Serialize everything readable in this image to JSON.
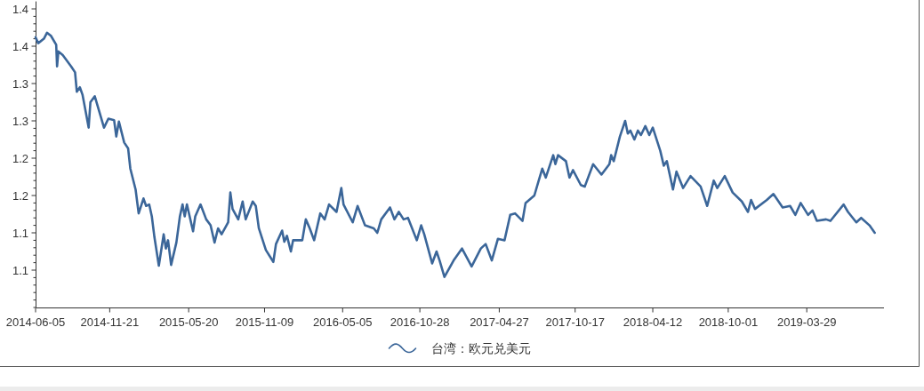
{
  "chart_data": {
    "type": "line",
    "x": [
      "2014-06-05",
      "2014-06-11",
      "2014-06-24",
      "2014-07-01",
      "2014-07-10",
      "2014-07-22",
      "2014-07-24",
      "2014-07-27",
      "2014-08-06",
      "2014-08-25",
      "2014-09-03",
      "2014-09-07",
      "2014-09-14",
      "2014-09-20",
      "2014-10-04",
      "2014-10-08",
      "2014-10-18",
      "2014-10-25",
      "2014-11-08",
      "2014-11-18",
      "2014-12-01",
      "2014-12-06",
      "2014-12-12",
      "2014-12-24",
      "2015-01-02",
      "2015-01-07",
      "2015-01-19",
      "2015-01-26",
      "2015-02-06",
      "2015-02-12",
      "2015-02-19",
      "2015-02-25",
      "2015-03-03",
      "2015-03-13",
      "2015-03-24",
      "2015-03-29",
      "2015-04-03",
      "2015-04-10",
      "2015-04-22",
      "2015-04-30",
      "2015-05-06",
      "2015-05-11",
      "2015-05-16",
      "2015-05-30",
      "2015-06-04",
      "2015-06-16",
      "2015-06-29",
      "2015-07-09",
      "2015-07-18",
      "2015-07-26",
      "2015-08-03",
      "2015-08-18",
      "2015-08-23",
      "2015-08-28",
      "2015-09-10",
      "2015-09-20",
      "2015-09-27",
      "2015-10-13",
      "2015-10-20",
      "2015-10-27",
      "2015-11-12",
      "2015-11-29",
      "2015-12-05",
      "2015-12-19",
      "2015-12-24",
      "2015-12-30",
      "2016-01-08",
      "2016-01-13",
      "2016-02-03",
      "2016-02-11",
      "2016-02-20",
      "2016-03-01",
      "2016-03-15",
      "2016-03-25",
      "2016-04-04",
      "2016-04-21",
      "2016-05-02",
      "2016-05-07",
      "2016-05-28",
      "2016-06-08",
      "2016-06-25",
      "2016-07-15",
      "2016-07-23",
      "2016-08-01",
      "2016-08-21",
      "2016-08-31",
      "2016-09-10",
      "2016-09-21",
      "2016-10-01",
      "2016-10-21",
      "2016-10-31",
      "2016-11-07",
      "2016-11-25",
      "2016-12-05",
      "2016-12-12",
      "2016-12-23",
      "2017-01-13",
      "2017-02-01",
      "2017-02-23",
      "2017-03-16",
      "2017-03-27",
      "2017-04-10",
      "2017-04-24",
      "2017-05-09",
      "2017-05-22",
      "2017-06-02",
      "2017-06-19",
      "2017-06-26",
      "2017-07-16",
      "2017-07-26",
      "2017-08-03",
      "2017-08-11",
      "2017-08-28",
      "2017-09-02",
      "2017-09-08",
      "2017-09-26",
      "2017-10-04",
      "2017-10-12",
      "2017-10-30",
      "2017-11-08",
      "2017-11-27",
      "2017-12-16",
      "2018-01-03",
      "2018-01-07",
      "2018-01-13",
      "2018-01-27",
      "2018-02-08",
      "2018-02-14",
      "2018-02-20",
      "2018-03-01",
      "2018-03-09",
      "2018-03-16",
      "2018-03-26",
      "2018-04-04",
      "2018-04-12",
      "2018-04-29",
      "2018-05-07",
      "2018-05-14",
      "2018-05-28",
      "2018-06-05",
      "2018-06-20",
      "2018-07-07",
      "2018-07-30",
      "2018-08-14",
      "2018-08-29",
      "2018-09-06",
      "2018-09-23",
      "2018-10-11",
      "2018-11-01",
      "2018-11-15",
      "2018-11-22",
      "2018-12-01",
      "2018-12-28",
      "2019-01-12",
      "2019-02-02",
      "2019-02-19",
      "2019-03-03",
      "2019-03-15",
      "2019-04-01",
      "2019-04-11",
      "2019-04-21",
      "2019-05-12",
      "2019-05-22",
      "2019-06-21",
      "2019-07-01",
      "2019-07-20",
      "2019-07-31",
      "2019-08-19",
      "2019-08-31"
    ],
    "series": [
      {
        "name": "台湾：欧元兑美元",
        "color": "#3b6699",
        "values": [
          1.362,
          1.354,
          1.36,
          1.368,
          1.364,
          1.352,
          1.323,
          1.343,
          1.338,
          1.323,
          1.315,
          1.289,
          1.295,
          1.285,
          1.241,
          1.275,
          1.283,
          1.269,
          1.241,
          1.253,
          1.251,
          1.229,
          1.249,
          1.221,
          1.213,
          1.186,
          1.158,
          1.126,
          1.146,
          1.136,
          1.138,
          1.122,
          1.094,
          1.056,
          1.098,
          1.079,
          1.09,
          1.057,
          1.087,
          1.122,
          1.138,
          1.122,
          1.138,
          1.102,
          1.122,
          1.138,
          1.118,
          1.11,
          1.087,
          1.106,
          1.098,
          1.114,
          1.154,
          1.132,
          1.118,
          1.142,
          1.118,
          1.142,
          1.136,
          1.106,
          1.077,
          1.061,
          1.085,
          1.103,
          1.088,
          1.096,
          1.075,
          1.09,
          1.09,
          1.118,
          1.106,
          1.09,
          1.126,
          1.118,
          1.138,
          1.128,
          1.16,
          1.138,
          1.114,
          1.136,
          1.11,
          1.106,
          1.1,
          1.118,
          1.134,
          1.118,
          1.128,
          1.118,
          1.12,
          1.09,
          1.11,
          1.098,
          1.059,
          1.075,
          1.063,
          1.041,
          1.063,
          1.079,
          1.055,
          1.079,
          1.085,
          1.063,
          1.092,
          1.09,
          1.124,
          1.126,
          1.116,
          1.14,
          1.15,
          1.17,
          1.186,
          1.174,
          1.204,
          1.192,
          1.204,
          1.196,
          1.174,
          1.184,
          1.164,
          1.162,
          1.192,
          1.178,
          1.192,
          1.204,
          1.196,
          1.229,
          1.25,
          1.233,
          1.237,
          1.225,
          1.237,
          1.231,
          1.243,
          1.231,
          1.241,
          1.21,
          1.19,
          1.196,
          1.158,
          1.182,
          1.16,
          1.176,
          1.162,
          1.136,
          1.17,
          1.16,
          1.176,
          1.154,
          1.142,
          1.128,
          1.144,
          1.132,
          1.144,
          1.152,
          1.134,
          1.136,
          1.124,
          1.14,
          1.124,
          1.13,
          1.116,
          1.118,
          1.116,
          1.138,
          1.128,
          1.114,
          1.12,
          1.11,
          1.1
        ]
      }
    ],
    "xlim": [
      "2014-06-05",
      "2019-09-21"
    ],
    "xticks": [
      "2014-06-05",
      "2014-11-21",
      "2015-05-20",
      "2015-11-09",
      "2016-05-05",
      "2016-10-28",
      "2017-04-27",
      "2017-10-17",
      "2018-04-12",
      "2018-10-01",
      "2019-03-29"
    ],
    "ylim": [
      1.0,
      1.41
    ],
    "yticks": [
      {
        "value": 1.0,
        "label": null
      },
      {
        "value": 1.01,
        "label": null
      },
      {
        "value": 1.02,
        "label": null
      },
      {
        "value": 1.03,
        "label": null
      },
      {
        "value": 1.04,
        "label": null
      },
      {
        "value": 1.05,
        "label": "1.1"
      },
      {
        "value": 1.06,
        "label": null
      },
      {
        "value": 1.07,
        "label": null
      },
      {
        "value": 1.08,
        "label": null
      },
      {
        "value": 1.09,
        "label": null
      },
      1.1,
      {
        "value": 1.11,
        "label": null
      },
      {
        "value": 1.12,
        "label": null
      },
      {
        "value": 1.13,
        "label": null
      },
      {
        "value": 1.14,
        "label": null
      },
      {
        "value": 1.15,
        "label": "1.2"
      },
      {
        "value": 1.16,
        "label": null
      },
      {
        "value": 1.17,
        "label": null
      },
      {
        "value": 1.18,
        "label": null
      },
      {
        "value": 1.19,
        "label": null
      },
      1.2,
      {
        "value": 1.21,
        "label": null
      },
      {
        "value": 1.22,
        "label": null
      },
      {
        "value": 1.23,
        "label": null
      },
      {
        "value": 1.24,
        "label": null
      },
      {
        "value": 1.25,
        "label": "1.3"
      },
      {
        "value": 1.26,
        "label": null
      },
      {
        "value": 1.27,
        "label": null
      },
      {
        "value": 1.28,
        "label": null
      },
      {
        "value": 1.29,
        "label": null
      },
      1.3,
      {
        "value": 1.31,
        "label": null
      },
      {
        "value": 1.32,
        "label": null
      },
      {
        "value": 1.33,
        "label": null
      },
      {
        "value": 1.34,
        "label": null
      },
      {
        "value": 1.35,
        "label": "1.4"
      },
      {
        "value": 1.36,
        "label": null
      },
      {
        "value": 1.37,
        "label": null
      },
      {
        "value": 1.38,
        "label": null
      },
      {
        "value": 1.39,
        "label": null
      },
      1.4
    ],
    "legend": "bottom",
    "line_style": "solid"
  }
}
